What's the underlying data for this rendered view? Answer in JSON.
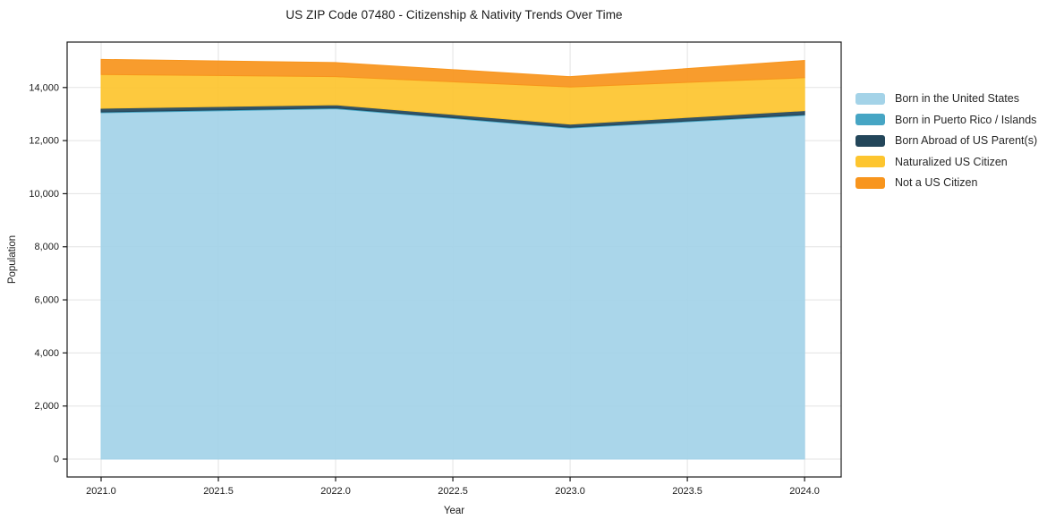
{
  "chart_data": {
    "type": "area",
    "stacked": true,
    "title": "US ZIP Code 07480 - Citizenship & Nativity Trends Over Time",
    "xlabel": "Year",
    "ylabel": "Population",
    "x": [
      2021,
      2022,
      2023,
      2024
    ],
    "series": [
      {
        "name": "Born in the United States",
        "color": "#a4d3e8",
        "values": [
          13050,
          13200,
          12470,
          12950
        ]
      },
      {
        "name": "Born in Puerto Rico / Islands",
        "color": "#46a5c4",
        "values": [
          30,
          30,
          30,
          30
        ]
      },
      {
        "name": "Born Abroad of US Parent(s)",
        "color": "#23465a",
        "values": [
          140,
          120,
          120,
          150
        ]
      },
      {
        "name": "Naturalized US Citizen",
        "color": "#fdc52f",
        "values": [
          1270,
          1060,
          1400,
          1240
        ]
      },
      {
        "name": "Not a US Citizen",
        "color": "#f8951d",
        "values": [
          570,
          530,
          390,
          650
        ]
      }
    ],
    "totals": [
      15060,
      14940,
      14410,
      15020
    ],
    "x_ticks": [
      "2021.0",
      "2021.5",
      "2022.0",
      "2022.5",
      "2023.0",
      "2023.5",
      "2024.0"
    ],
    "x_tick_values": [
      2021,
      2021.5,
      2022,
      2022.5,
      2023,
      2023.5,
      2024
    ],
    "y_ticks": [
      "0",
      "2,000",
      "4,000",
      "6,000",
      "8,000",
      "10,000",
      "12,000",
      "14,000"
    ],
    "y_tick_values": [
      0,
      2000,
      4000,
      6000,
      8000,
      10000,
      12000,
      14000
    ],
    "xlim": [
      2020.855,
      2024.156
    ],
    "ylim": [
      -674,
      15713
    ],
    "grid": true,
    "grid_color": "#e3e3e3",
    "spine_color": "#1a1a1a",
    "legend_position": "outside-right-top",
    "fill_opacity": 0.93
  }
}
